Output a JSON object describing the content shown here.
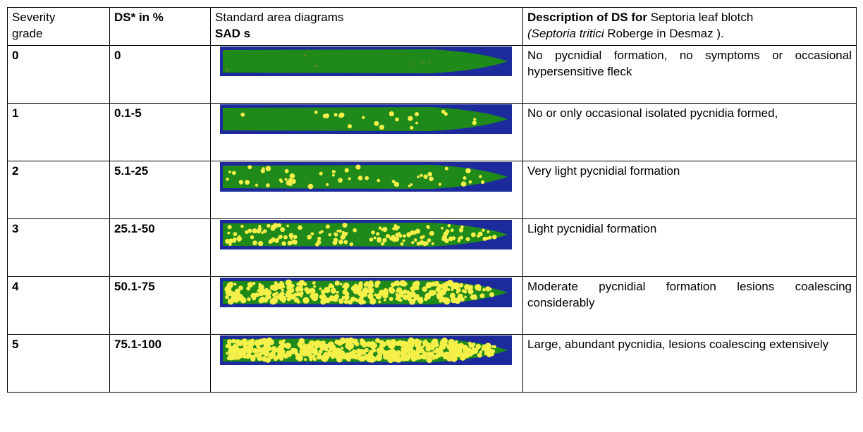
{
  "header": {
    "severity": [
      "Severity",
      "grade"
    ],
    "ds": "DS* in %",
    "sad": [
      "Standard area diagrams",
      "SAD s"
    ],
    "description": {
      "line1_bold": "Description of DS for",
      "line1_rest": "Septoria leaf blotch",
      "line2_italic": "(Septoria tritici",
      "line2_rest": "Roberge in Desmaz )."
    }
  },
  "rows": [
    {
      "grade": "0",
      "ds": "0",
      "description": "No pycnidial formation, no symptoms or occasional hypersensitive fleck"
    },
    {
      "grade": "1",
      "ds": "0.1-5",
      "description": "No or only occasional isolated pycnidia formed,"
    },
    {
      "grade": "2",
      "ds": "5.1-25",
      "description": "Very light pycnidial formation"
    },
    {
      "grade": "3",
      "ds": "25.1-50",
      "description": "Light pycnidial formation"
    },
    {
      "grade": "4",
      "ds": "50.1-75",
      "description": "Moderate pycnidial formation lesions coalescing considerably"
    },
    {
      "grade": "5",
      "ds": "75.1-100",
      "description": "Large, abundant pycnidia, lesions coalescing extensively"
    }
  ]
}
